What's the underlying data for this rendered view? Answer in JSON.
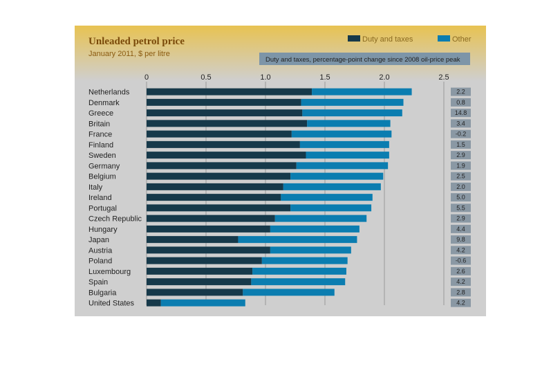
{
  "chart_data": {
    "type": "bar",
    "orientation": "horizontal",
    "stacked": true,
    "title": "Unleaded petrol price",
    "subtitle": "January 2011, $ per litre",
    "xlim": [
      0,
      2.5
    ],
    "xticks": [
      "0",
      "0.5",
      "1.0",
      "1.5",
      "2.0",
      "2.5"
    ],
    "grid": true,
    "legend_position": "top-right",
    "change_caption": "Duty and taxes, percentage-point change since 2008 oil-price peak",
    "categories": [
      "Netherlands",
      "Denmark",
      "Greece",
      "Britain",
      "France",
      "Finland",
      "Sweden",
      "Germany",
      "Belgium",
      "Italy",
      "Ireland",
      "Portugal",
      "Czech Republic",
      "Hungary",
      "Japan",
      "Austria",
      "Poland",
      "Luxembourg",
      "Spain",
      "Bulgaria",
      "United States"
    ],
    "series": [
      {
        "name": "Duty and taxes",
        "color": "#16394a",
        "values": [
          1.39,
          1.3,
          1.31,
          1.35,
          1.22,
          1.29,
          1.34,
          1.26,
          1.21,
          1.15,
          1.13,
          1.21,
          1.08,
          1.04,
          0.77,
          1.04,
          0.97,
          0.89,
          0.88,
          0.81,
          0.12
        ]
      },
      {
        "name": "Other",
        "color": "#0b7db0",
        "values": [
          0.84,
          0.86,
          0.84,
          0.7,
          0.84,
          0.75,
          0.7,
          0.77,
          0.78,
          0.82,
          0.77,
          0.68,
          0.77,
          0.75,
          1.0,
          0.68,
          0.72,
          0.79,
          0.79,
          0.77,
          0.71
        ]
      }
    ],
    "change_values": [
      "2.2",
      "0.8",
      "14.8",
      "3.4",
      "-0.2",
      "1.5",
      "2.9",
      "1.9",
      "2.5",
      "2.0",
      "5.0",
      "5.5",
      "2.9",
      "4.4",
      "9.8",
      "4.2",
      "-0.6",
      "2.6",
      "4.2",
      "2.8",
      "4.2"
    ]
  },
  "colors": {
    "panel": "#cfcfcf",
    "grid": "#9a9a9a",
    "change_box": "#8a98a4"
  }
}
